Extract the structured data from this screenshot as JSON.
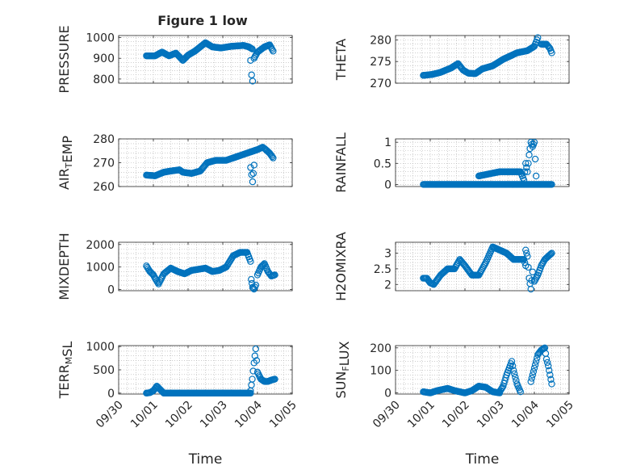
{
  "figure_title": "Figure 1 low",
  "colors": {
    "marker": "#0072BD",
    "axis": "#262626",
    "grid": "#b0b0b0",
    "background": "#ffffff"
  },
  "time_ticks": [
    "09/30",
    "10/01",
    "10/02",
    "10/03",
    "10/04",
    "10/05"
  ],
  "xlabel": "Time",
  "chart_data": [
    {
      "type": "scatter",
      "id": "pressure",
      "ylabel": "PRESSURE",
      "ylabel_parts": [
        {
          "t": "PRESSURE",
          "sub": false
        }
      ],
      "ylim": [
        780,
        1010
      ],
      "yticks": [
        800,
        900,
        1000
      ],
      "ytick_labels": [
        "800",
        "900",
        "1000"
      ],
      "xlim": [
        0,
        5
      ],
      "grid": true,
      "marker": "open-circle",
      "series": [
        {
          "x": [
            0.8,
            1.05,
            1.25,
            1.45,
            1.65,
            1.85,
            2.0,
            2.2,
            2.5,
            2.7,
            2.95,
            3.25,
            3.6,
            3.75,
            3.85
          ],
          "y": [
            912,
            912,
            930,
            912,
            925,
            890,
            915,
            935,
            975,
            955,
            950,
            958,
            962,
            955,
            945
          ]
        },
        {
          "x": [
            3.8,
            3.83,
            3.86
          ],
          "y": [
            890,
            820,
            790
          ]
        },
        {
          "x": [
            3.9,
            4.0,
            4.2,
            4.35,
            4.45
          ],
          "y": [
            900,
            930,
            955,
            965,
            935
          ]
        }
      ]
    },
    {
      "type": "scatter",
      "id": "theta",
      "ylabel": "THETA",
      "ylabel_parts": [
        {
          "t": "THETA",
          "sub": false
        }
      ],
      "ylim": [
        270,
        281
      ],
      "yticks": [
        270,
        275,
        280
      ],
      "ytick_labels": [
        "270",
        "275",
        "280"
      ],
      "xlim": [
        0,
        5
      ],
      "grid": true,
      "marker": "open-circle",
      "series": [
        {
          "x": [
            0.8,
            1.05,
            1.3,
            1.6,
            1.8,
            1.95,
            2.1,
            2.3,
            2.5,
            2.8,
            3.1,
            3.5,
            3.8,
            4.0,
            4.1
          ],
          "y": [
            271.8,
            272,
            272.5,
            273.5,
            274.5,
            273,
            272.3,
            272.2,
            273.3,
            274,
            275.5,
            277,
            277.5,
            278.5,
            280.5
          ]
        },
        {
          "x": [
            4.2,
            4.35,
            4.45,
            4.5
          ],
          "y": [
            279,
            279,
            278,
            277
          ]
        }
      ]
    },
    {
      "type": "scatter",
      "id": "air_temp",
      "ylabel": "AIR_TEMP",
      "ylabel_parts": [
        {
          "t": "AIR",
          "sub": false
        },
        {
          "t": "T",
          "sub": true
        },
        {
          "t": "EMP",
          "sub": false
        }
      ],
      "ylim": [
        260,
        280
      ],
      "yticks": [
        260,
        270,
        280
      ],
      "ytick_labels": [
        "260",
        "270",
        "280"
      ],
      "xlim": [
        0,
        5
      ],
      "grid": true,
      "marker": "open-circle",
      "series": [
        {
          "x": [
            0.8,
            1.05,
            1.3,
            1.5,
            1.75,
            1.85,
            2.1,
            2.35,
            2.55,
            2.8,
            3.1,
            3.5,
            3.8,
            4.0,
            4.15
          ],
          "y": [
            264.8,
            264.5,
            266,
            266.5,
            267,
            266,
            265.5,
            266.5,
            270,
            271,
            271,
            273,
            274.5,
            275.5,
            276.5
          ]
        },
        {
          "x": [
            3.8,
            3.83,
            3.86,
            3.9
          ],
          "y": [
            268,
            265,
            262,
            269
          ]
        },
        {
          "x": [
            4.2,
            4.35,
            4.45
          ],
          "y": [
            276,
            274,
            272
          ]
        }
      ]
    },
    {
      "type": "scatter",
      "id": "rainfall",
      "ylabel": "RAINFALL",
      "ylabel_parts": [
        {
          "t": "RAINFALL",
          "sub": false
        }
      ],
      "ylim": [
        -0.05,
        1.08
      ],
      "yticks": [
        0,
        0.5,
        1
      ],
      "ytick_labels": [
        "0",
        "0.5",
        "1"
      ],
      "xlim": [
        0,
        5
      ],
      "grid": true,
      "marker": "open-circle",
      "series": [
        {
          "x": [
            0.8,
            1.2,
            1.6,
            2.0,
            2.4,
            2.8,
            3.2,
            3.6,
            4.0,
            4.4,
            4.5
          ],
          "y": [
            0,
            0,
            0,
            0,
            0,
            0,
            0,
            0,
            0,
            0,
            0
          ]
        },
        {
          "x": [
            2.4,
            3.0,
            3.2,
            3.4,
            3.5,
            3.6,
            3.7,
            3.75,
            3.8,
            3.85,
            3.9,
            3.95,
            4.0,
            4.05
          ],
          "y": [
            0.2,
            0.3,
            0.3,
            0.3,
            0.3,
            0.3,
            0.1,
            0.5,
            0.3,
            0.7,
            1.0,
            0.9,
            1.0,
            0.2
          ]
        }
      ]
    },
    {
      "type": "scatter",
      "id": "mixdepth",
      "ylabel": "MIXDEPTH",
      "ylabel_parts": [
        {
          "t": "MIXDEPTH",
          "sub": false
        }
      ],
      "ylim": [
        -50,
        2100
      ],
      "yticks": [
        0,
        1000,
        2000
      ],
      "ytick_labels": [
        "0",
        "1000",
        "2000"
      ],
      "xlim": [
        0,
        5
      ],
      "grid": true,
      "marker": "open-circle",
      "series": [
        {
          "x": [
            0.8,
            0.9,
            1.0,
            1.05,
            1.15,
            1.3,
            1.5,
            1.7,
            1.9,
            2.1,
            2.3,
            2.5,
            2.7,
            2.9,
            3.1,
            3.3,
            3.5,
            3.7,
            3.8
          ],
          "y": [
            1050,
            800,
            650,
            500,
            250,
            700,
            950,
            800,
            700,
            850,
            900,
            950,
            800,
            850,
            1000,
            1500,
            1650,
            1650,
            1250
          ]
        },
        {
          "x": [
            3.82,
            3.86,
            3.9,
            3.95
          ],
          "y": [
            450,
            100,
            20,
            200
          ]
        },
        {
          "x": [
            4.0,
            4.1,
            4.2,
            4.3,
            4.4,
            4.5
          ],
          "y": [
            650,
            1000,
            1150,
            800,
            600,
            650
          ]
        }
      ]
    },
    {
      "type": "scatter",
      "id": "h2omixra",
      "ylabel": "H2OMIXRA",
      "ylabel_parts": [
        {
          "t": "H2OMIXRA",
          "sub": false
        }
      ],
      "ylim": [
        1.8,
        3.35
      ],
      "yticks": [
        2,
        2.5,
        3
      ],
      "ytick_labels": [
        "2",
        "2.5",
        "3"
      ],
      "xlim": [
        0,
        5
      ],
      "grid": true,
      "marker": "open-circle",
      "series": [
        {
          "x": [
            0.8,
            0.9,
            1.0,
            1.1,
            1.3,
            1.5,
            1.7,
            1.85,
            2.0,
            2.2,
            2.4,
            2.6,
            2.8,
            3.0,
            3.2,
            3.4,
            3.6,
            3.7,
            3.75
          ],
          "y": [
            2.2,
            2.2,
            2.05,
            2.0,
            2.3,
            2.5,
            2.5,
            2.8,
            2.6,
            2.3,
            2.3,
            2.7,
            3.2,
            3.1,
            3.0,
            2.8,
            2.8,
            2.8,
            2.6
          ]
        },
        {
          "x": [
            3.75,
            3.8,
            3.85,
            3.9,
            3.95
          ],
          "y": [
            3.1,
            2.9,
            2.2,
            1.85,
            2.4
          ]
        },
        {
          "x": [
            4.0,
            4.1,
            4.2,
            4.3,
            4.4,
            4.5
          ],
          "y": [
            2.1,
            2.3,
            2.6,
            2.8,
            2.9,
            3.0
          ]
        }
      ]
    },
    {
      "type": "scatter",
      "id": "terr_msl",
      "ylabel": "TERR_MSL",
      "ylabel_parts": [
        {
          "t": "TERR",
          "sub": false
        },
        {
          "t": "M",
          "sub": true
        },
        {
          "t": "SL",
          "sub": false
        }
      ],
      "ylim": [
        -20,
        1020
      ],
      "yticks": [
        0,
        500,
        1000
      ],
      "ytick_labels": [
        "0",
        "500",
        "1000"
      ],
      "xlim": [
        0,
        5
      ],
      "grid": true,
      "marker": "open-circle",
      "series": [
        {
          "x": [
            0.8,
            0.9,
            1.0,
            1.1,
            1.3,
            1.6,
            2.0,
            2.4,
            2.8,
            3.2,
            3.5,
            3.8
          ],
          "y": [
            0,
            10,
            50,
            150,
            0,
            0,
            0,
            0,
            0,
            0,
            0,
            0
          ]
        },
        {
          "x": [
            3.8,
            3.85,
            3.9,
            3.95,
            4.0,
            4.1,
            4.2,
            4.3,
            4.4,
            4.5
          ],
          "y": [
            50,
            300,
            650,
            950,
            450,
            300,
            250,
            250,
            280,
            300
          ]
        }
      ]
    },
    {
      "type": "scatter",
      "id": "sun_flux",
      "ylabel": "SUN_FLUX",
      "ylabel_parts": [
        {
          "t": "SUN",
          "sub": false
        },
        {
          "t": "F",
          "sub": true
        },
        {
          "t": "LUX",
          "sub": false
        }
      ],
      "ylim": [
        -5,
        210
      ],
      "yticks": [
        0,
        100,
        200
      ],
      "ytick_labels": [
        "0",
        "100",
        "200"
      ],
      "xlim": [
        0,
        5
      ],
      "grid": true,
      "marker": "open-circle",
      "series": [
        {
          "x": [
            0.8,
            1.0,
            1.2,
            1.5,
            1.7,
            2.0,
            2.2,
            2.4,
            2.6,
            2.8,
            3.0
          ],
          "y": [
            5,
            0,
            10,
            20,
            10,
            0,
            10,
            30,
            25,
            5,
            0
          ]
        },
        {
          "x": [
            3.0,
            3.1,
            3.2,
            3.3,
            3.35,
            3.4,
            3.5,
            3.6
          ],
          "y": [
            5,
            30,
            80,
            120,
            140,
            100,
            40,
            5
          ]
        },
        {
          "x": [
            3.9,
            4.0,
            4.1,
            4.2,
            4.3,
            4.35,
            4.4,
            4.45,
            4.5
          ],
          "y": [
            50,
            110,
            170,
            190,
            200,
            150,
            120,
            80,
            40
          ]
        }
      ]
    }
  ]
}
